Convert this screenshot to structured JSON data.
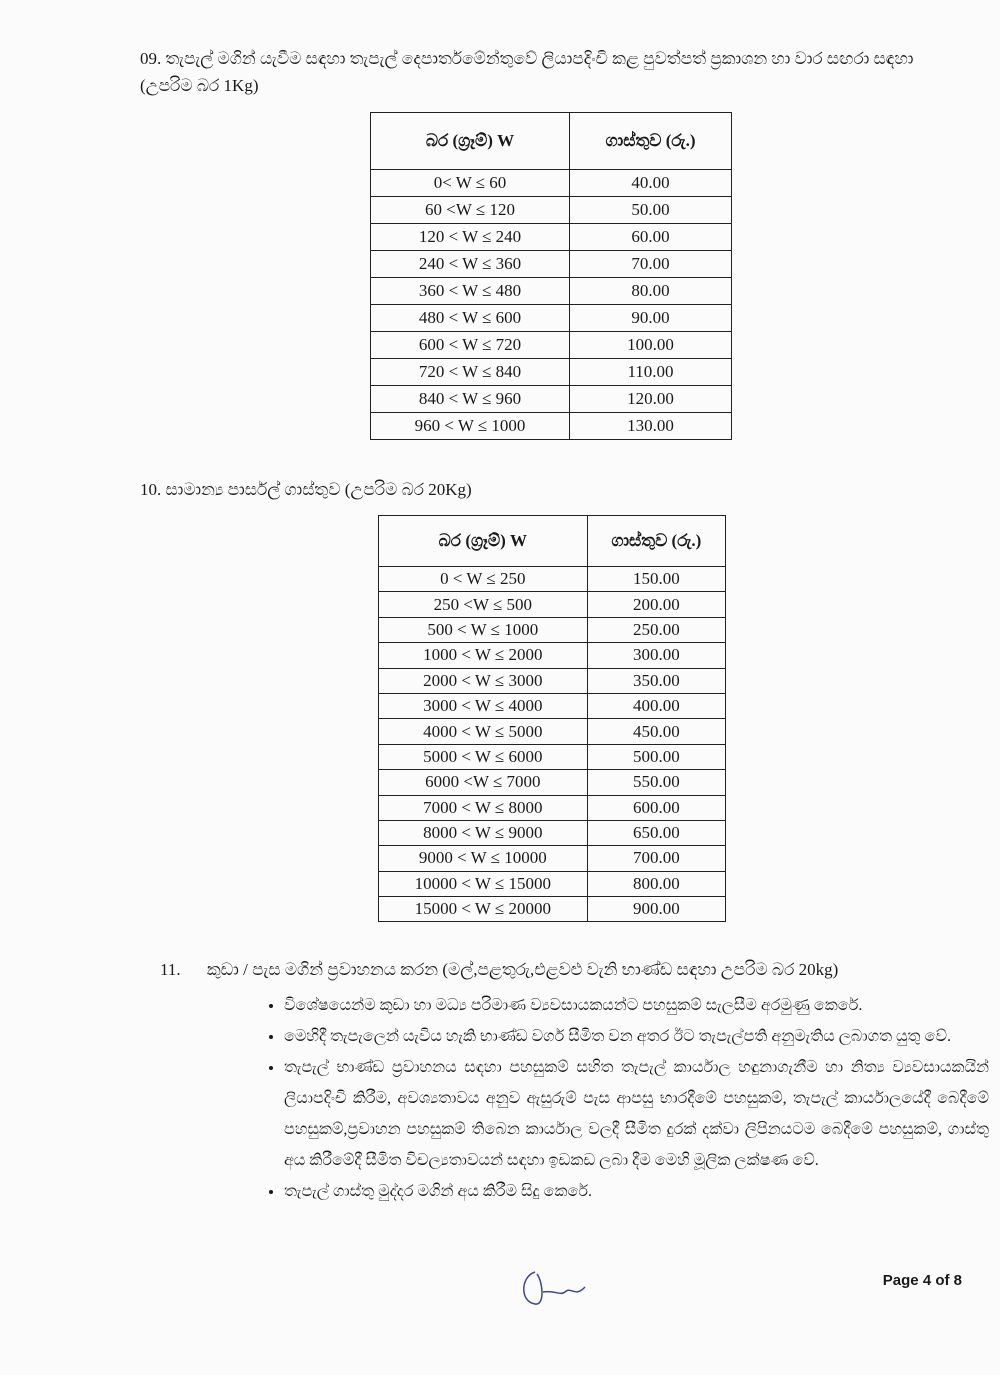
{
  "section9": {
    "number": "09.",
    "title": "තැපැල් මගින් යැවීම සඳහා තැපැල් දෙපාර්තමේන්තුවේ ලියාපදිංචි කළ පුවත්පත් ප්‍රකාශන හා වාර සඟරා සඳහා (උපරිම බර 1Kg)",
    "headers": [
      "බර (ග්‍රෑම්) W",
      "ගාස්තුව (රු.)"
    ],
    "rows": [
      [
        "0< W ≤ 60",
        "40.00"
      ],
      [
        "60 <W ≤ 120",
        "50.00"
      ],
      [
        "120 < W ≤ 240",
        "60.00"
      ],
      [
        "240 < W ≤ 360",
        "70.00"
      ],
      [
        "360 < W ≤ 480",
        "80.00"
      ],
      [
        "480 < W ≤ 600",
        "90.00"
      ],
      [
        "600 < W ≤ 720",
        "100.00"
      ],
      [
        "720 < W ≤ 840",
        "110.00"
      ],
      [
        "840 < W ≤ 960",
        "120.00"
      ],
      [
        "960 < W ≤ 1000",
        "130.00"
      ]
    ]
  },
  "section10": {
    "number": "10.",
    "title": "සාමාන්‍ය පාර්සල් ගාස්තුව (උපරිම බර 20Kg)",
    "headers": [
      "බර (ග්‍රෑම්) W",
      "ගාස්තුව (රු.)"
    ],
    "rows": [
      [
        "0 < W ≤ 250",
        "150.00"
      ],
      [
        "250 <W ≤ 500",
        "200.00"
      ],
      [
        "500 < W ≤ 1000",
        "250.00"
      ],
      [
        "1000 < W ≤ 2000",
        "300.00"
      ],
      [
        "2000 < W ≤ 3000",
        "350.00"
      ],
      [
        "3000 < W ≤ 4000",
        "400.00"
      ],
      [
        "4000 < W ≤ 5000",
        "450.00"
      ],
      [
        "5000 < W ≤ 6000",
        "500.00"
      ],
      [
        "6000 <W ≤ 7000",
        "550.00"
      ],
      [
        "7000 < W ≤ 8000",
        "600.00"
      ],
      [
        "8000 < W ≤ 9000",
        "650.00"
      ],
      [
        "9000 < W ≤ 10000",
        "700.00"
      ],
      [
        "10000 < W ≤ 15000",
        "800.00"
      ],
      [
        "15000 < W ≤ 20000",
        "900.00"
      ]
    ]
  },
  "section11": {
    "number": "11.",
    "title": "කුඩා / පැස මගින් ප්‍රවාහනය කරන (මල්,පළතුරු,එළවළු වැනි භාණ්ඩ සඳහා උපරිම බර 20kg)",
    "bullets": [
      "විශේෂයෙන්ම කුඩා හා මධ්‍ය පරිමාණ ව්‍යවසායකයන්ට පහසුකම් සැලසීම අරමුණු කෙරේ.",
      "මෙහිදී තැපැලෙන් යැවිය හැකි භාණ්ඩ වර්ග සීමිත වන අතර ඊට තැපැල්පති අනුමැතිය ලබාගත යුතු වේ.",
      "තැපැල් භාණ්ඩ ප්‍රවාහනය සඳහා පහසුකම් සහිත තැපැල් කාර්යාල හඳුනාගැනීම හා නිත්‍ය ව්‍යවසායකයින් ලියාපදිංචි කිරීම, අවශ්‍යතාවය අනුව ඇසුරුම් පැස ආපසු භාරදීමේ පහසුකම්, තැපැල් කාර්යාලයේදී බෙදීමේ පහසුකම්,ප්‍රවාහන පහසුකම් තිබෙන කාර්යාල වලදී සීමිත දුරක් දක්වා ලිපිනයටම බෙදීමේ පහසුකම්, ගාස්තු අය කිරීමේදී සීමිත විචල්‍යතාවයන් සඳහා ඉඩකඩ ලබා දීම මෙහි මූලික ලක්ෂණ වේ.",
      "තැපැල් ගාස්තු මුද්දර මගින් අය කිරීම සිදු කෙරේ."
    ]
  },
  "footer": {
    "prefix": "Page ",
    "current": "4",
    "sep": " of ",
    "total": "8"
  }
}
